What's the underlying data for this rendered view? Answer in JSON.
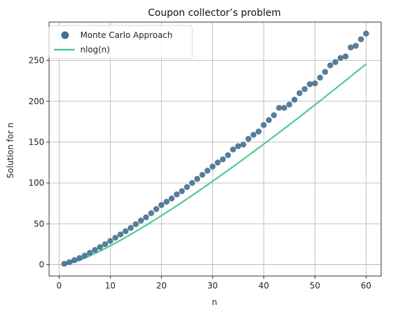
{
  "chart_data": {
    "type": "scatter",
    "title": "Coupon collector’s problem",
    "xlabel": "n",
    "ylabel": "Solution for n",
    "xlim": [
      -1.95,
      62.95
    ],
    "ylim": [
      -14,
      297
    ],
    "xticks": [
      0,
      10,
      20,
      30,
      40,
      50,
      60
    ],
    "yticks": [
      0,
      50,
      100,
      150,
      200,
      250
    ],
    "grid": true,
    "legend_position": "top-left",
    "series": [
      {
        "name": "Monte Carlo Approach",
        "kind": "scatter",
        "color": "#456f8f",
        "x": [
          1,
          2,
          3,
          4,
          5,
          6,
          7,
          8,
          9,
          10,
          11,
          12,
          13,
          14,
          15,
          16,
          17,
          18,
          19,
          20,
          21,
          22,
          23,
          24,
          25,
          26,
          27,
          28,
          29,
          30,
          31,
          32,
          33,
          34,
          35,
          36,
          37,
          38,
          39,
          40,
          41,
          42,
          43,
          44,
          45,
          46,
          47,
          48,
          49,
          50,
          51,
          52,
          53,
          54,
          55,
          56,
          57,
          58,
          59,
          60
        ],
        "y": [
          1,
          3,
          5.5,
          8,
          11,
          14.5,
          18,
          21.5,
          25,
          29,
          33,
          37,
          41,
          45,
          49.5,
          54,
          58,
          63,
          68,
          73,
          77,
          81,
          86,
          90,
          95,
          100,
          105,
          110,
          115,
          120,
          125,
          129,
          134,
          141,
          145,
          147,
          154,
          159,
          163,
          171,
          177,
          183,
          192,
          192,
          196,
          202,
          210,
          215,
          221,
          222,
          229,
          236,
          244,
          248,
          253,
          255,
          266,
          268,
          276,
          283
        ]
      },
      {
        "name": "nlog(n)",
        "kind": "line",
        "color": "#4fc896",
        "fn": "n*ln(n)",
        "x_range": [
          1,
          60
        ]
      }
    ]
  }
}
